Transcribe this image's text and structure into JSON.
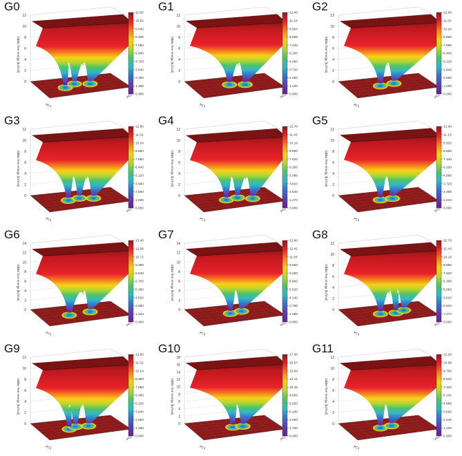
{
  "chart_data": [
    {
      "type": "surface",
      "panel_label": "G0",
      "zlabel": "Gibbs free energy (kJ/mol)",
      "xlabel": "PC1",
      "ylabel": "PC2",
      "zlim": [
        0,
        12
      ],
      "z_ticks": [
        "0",
        "2",
        "4",
        "6",
        "8",
        "10",
        "12"
      ],
      "colorbar_ticks": [
        "11.80",
        "10.62",
        "9.440",
        "8.260",
        "7.080",
        "5.900",
        "4.720",
        "3.540",
        "2.360",
        "1.180",
        "0.000"
      ],
      "basins": [
        [
          0.3,
          0.55
        ],
        [
          0.45,
          0.4
        ],
        [
          0.62,
          0.5
        ]
      ],
      "depth": 0.85
    },
    {
      "type": "surface",
      "panel_label": "G1",
      "zlabel": "Gibbs free energy (kJ/mol)",
      "xlabel": "PC1",
      "ylabel": "PC2",
      "zlim": [
        0,
        12
      ],
      "z_ticks": [
        "0",
        "2",
        "4",
        "6",
        "8",
        "10",
        "12"
      ],
      "colorbar_ticks": [
        "12.40",
        "11.16",
        "9.920",
        "8.680",
        "7.440",
        "6.200",
        "4.960",
        "3.720",
        "2.480",
        "1.240",
        "0.000"
      ],
      "basins": [
        [
          0.45,
          0.45
        ],
        [
          0.62,
          0.55
        ]
      ],
      "depth": 0.9
    },
    {
      "type": "surface",
      "panel_label": "G2",
      "zlabel": "Gibbs free energy (kJ/mol)",
      "xlabel": "PC1",
      "ylabel": "PC2",
      "zlim": [
        0,
        12
      ],
      "z_ticks": [
        "0",
        "2",
        "4",
        "6",
        "8",
        "10",
        "12"
      ],
      "colorbar_ticks": [
        "12.80",
        "11.52",
        "10.24",
        "8.960",
        "7.680",
        "6.400",
        "5.120",
        "3.840",
        "2.560",
        "1.280",
        "0.000"
      ],
      "basins": [
        [
          0.4,
          0.5
        ],
        [
          0.58,
          0.45
        ]
      ],
      "depth": 0.88
    },
    {
      "type": "surface",
      "panel_label": "G3",
      "zlabel": "Gibbs free energy (kJ/mol)",
      "xlabel": "PC1",
      "ylabel": "PC2",
      "zlim": [
        0,
        12
      ],
      "z_ticks": [
        "0",
        "2",
        "4",
        "6",
        "8",
        "10",
        "12"
      ],
      "colorbar_ticks": [
        "12.80",
        "11.52",
        "10.24",
        "8.960",
        "7.680",
        "6.400",
        "5.120",
        "3.840",
        "2.560",
        "1.280",
        "0.000"
      ],
      "basins": [
        [
          0.35,
          0.5
        ],
        [
          0.5,
          0.45
        ],
        [
          0.65,
          0.55
        ]
      ],
      "depth": 0.8
    },
    {
      "type": "surface",
      "panel_label": "G4",
      "zlabel": "Gibbs free energy (kJ/mol)",
      "xlabel": "PC1",
      "ylabel": "PC2",
      "zlim": [
        0,
        12
      ],
      "z_ticks": [
        "0",
        "2",
        "4",
        "6",
        "8",
        "10",
        "12"
      ],
      "colorbar_ticks": [
        "12.70",
        "11.43",
        "10.16",
        "8.890",
        "7.620",
        "6.350",
        "5.080",
        "3.810",
        "2.540",
        "1.270",
        "0.000"
      ],
      "basins": [
        [
          0.4,
          0.5
        ],
        [
          0.55,
          0.45
        ],
        [
          0.7,
          0.6
        ]
      ],
      "depth": 0.78
    },
    {
      "type": "surface",
      "panel_label": "G5",
      "zlabel": "Gibbs free energy (kJ/mol)",
      "xlabel": "PC1",
      "ylabel": "PC2",
      "zlim": [
        0,
        12
      ],
      "z_ticks": [
        "0",
        "2",
        "4",
        "6",
        "8",
        "10",
        "12"
      ],
      "colorbar_ticks": [
        "12.40",
        "11.16",
        "9.920",
        "8.680",
        "7.440",
        "6.200",
        "4.960",
        "3.720",
        "2.480",
        "1.240",
        "0.000"
      ],
      "basins": [
        [
          0.4,
          0.5
        ],
        [
          0.55,
          0.5
        ]
      ],
      "depth": 0.9
    },
    {
      "type": "surface",
      "panel_label": "G6",
      "zlabel": "Gibbs free energy (kJ/mol)",
      "xlabel": "PC1",
      "ylabel": "PC2",
      "zlim": [
        0,
        14
      ],
      "z_ticks": [
        "0",
        "2",
        "4",
        "6",
        "8",
        "10",
        "12",
        "14"
      ],
      "colorbar_ticks": [
        "13.40",
        "12.06",
        "10.72",
        "9.380",
        "8.040",
        "6.700",
        "5.360",
        "4.020",
        "2.680",
        "1.340",
        "0.000"
      ],
      "basins": [
        [
          0.35,
          0.55
        ],
        [
          0.62,
          0.5
        ]
      ],
      "depth": 0.88
    },
    {
      "type": "surface",
      "panel_label": "G7",
      "zlabel": "Gibbs free energy (kJ/mol)",
      "xlabel": "PC1",
      "ylabel": "PC2",
      "zlim": [
        0,
        14
      ],
      "z_ticks": [
        "0",
        "2",
        "4",
        "6",
        "8",
        "10",
        "12",
        "14"
      ],
      "colorbar_ticks": [
        "13.80",
        "12.42",
        "11.04",
        "9.660",
        "8.280",
        "6.900",
        "5.520",
        "4.140",
        "2.760",
        "1.380",
        "0.000"
      ],
      "basins": [
        [
          0.45,
          0.5
        ],
        [
          0.6,
          0.45
        ]
      ],
      "depth": 0.92
    },
    {
      "type": "surface",
      "panel_label": "G8",
      "zlabel": "Gibbs free energy (kJ/mol)",
      "xlabel": "PC1",
      "ylabel": "PC2",
      "zlim": [
        0,
        12
      ],
      "z_ticks": [
        "0",
        "2",
        "4",
        "6",
        "8",
        "10",
        "12"
      ],
      "colorbar_ticks": [
        "12.70",
        "11.43",
        "10.16",
        "8.890",
        "7.620",
        "6.350",
        "5.080",
        "3.810",
        "2.540",
        "1.270",
        "0.000"
      ],
      "basins": [
        [
          0.4,
          0.5
        ],
        [
          0.58,
          0.55
        ],
        [
          0.7,
          0.45
        ]
      ],
      "depth": 0.85
    },
    {
      "type": "surface",
      "panel_label": "G9",
      "zlabel": "Gibbs free energy (kJ/mol)",
      "xlabel": "PC1",
      "ylabel": "PC2",
      "zlim": [
        0,
        12
      ],
      "z_ticks": [
        "0",
        "2",
        "4",
        "6",
        "8",
        "10",
        "12"
      ],
      "colorbar_ticks": [
        "12.80",
        "11.52",
        "10.24",
        "8.960",
        "7.680",
        "6.400",
        "5.120",
        "3.840",
        "2.560",
        "1.280",
        "0.000"
      ],
      "basins": [
        [
          0.35,
          0.55
        ],
        [
          0.45,
          0.45
        ],
        [
          0.6,
          0.5
        ]
      ],
      "depth": 0.82
    },
    {
      "type": "surface",
      "panel_label": "G10",
      "zlabel": "Gibbs free energy (kJ/mol)",
      "xlabel": "PC1",
      "ylabel": "PC2",
      "zlim": [
        0,
        18
      ],
      "z_ticks": [
        "0",
        "2",
        "4",
        "6",
        "8",
        "10",
        "12",
        "14",
        "16",
        "18"
      ],
      "colorbar_ticks": [
        "17.30",
        "15.57",
        "13.84",
        "12.11",
        "10.38",
        "8.650",
        "6.920",
        "5.190",
        "3.460",
        "1.730",
        "0.000"
      ],
      "basins": [
        [
          0.48,
          0.5
        ],
        [
          0.6,
          0.52
        ]
      ],
      "depth": 0.95
    },
    {
      "type": "surface",
      "panel_label": "G11",
      "zlabel": "Gibbs free energy (kJ/mol)",
      "xlabel": "PC1",
      "ylabel": "PC2",
      "zlim": [
        0,
        12
      ],
      "z_ticks": [
        "0",
        "2",
        "4",
        "6",
        "8",
        "10",
        "12"
      ],
      "colorbar_ticks": [
        "12.20",
        "10.98",
        "9.760",
        "8.540",
        "7.320",
        "6.100",
        "4.880",
        "3.660",
        "2.440",
        "1.220",
        "0.000"
      ],
      "basins": [
        [
          0.4,
          0.5
        ],
        [
          0.55,
          0.45
        ]
      ],
      "depth": 0.88
    }
  ],
  "colors": [
    "#8b1a1a",
    "#e8222a",
    "#f57e20",
    "#f7d117",
    "#b6d531",
    "#4cc36a",
    "#33b6c8",
    "#3872c9",
    "#5b3fb0",
    "#6b1f8c"
  ]
}
